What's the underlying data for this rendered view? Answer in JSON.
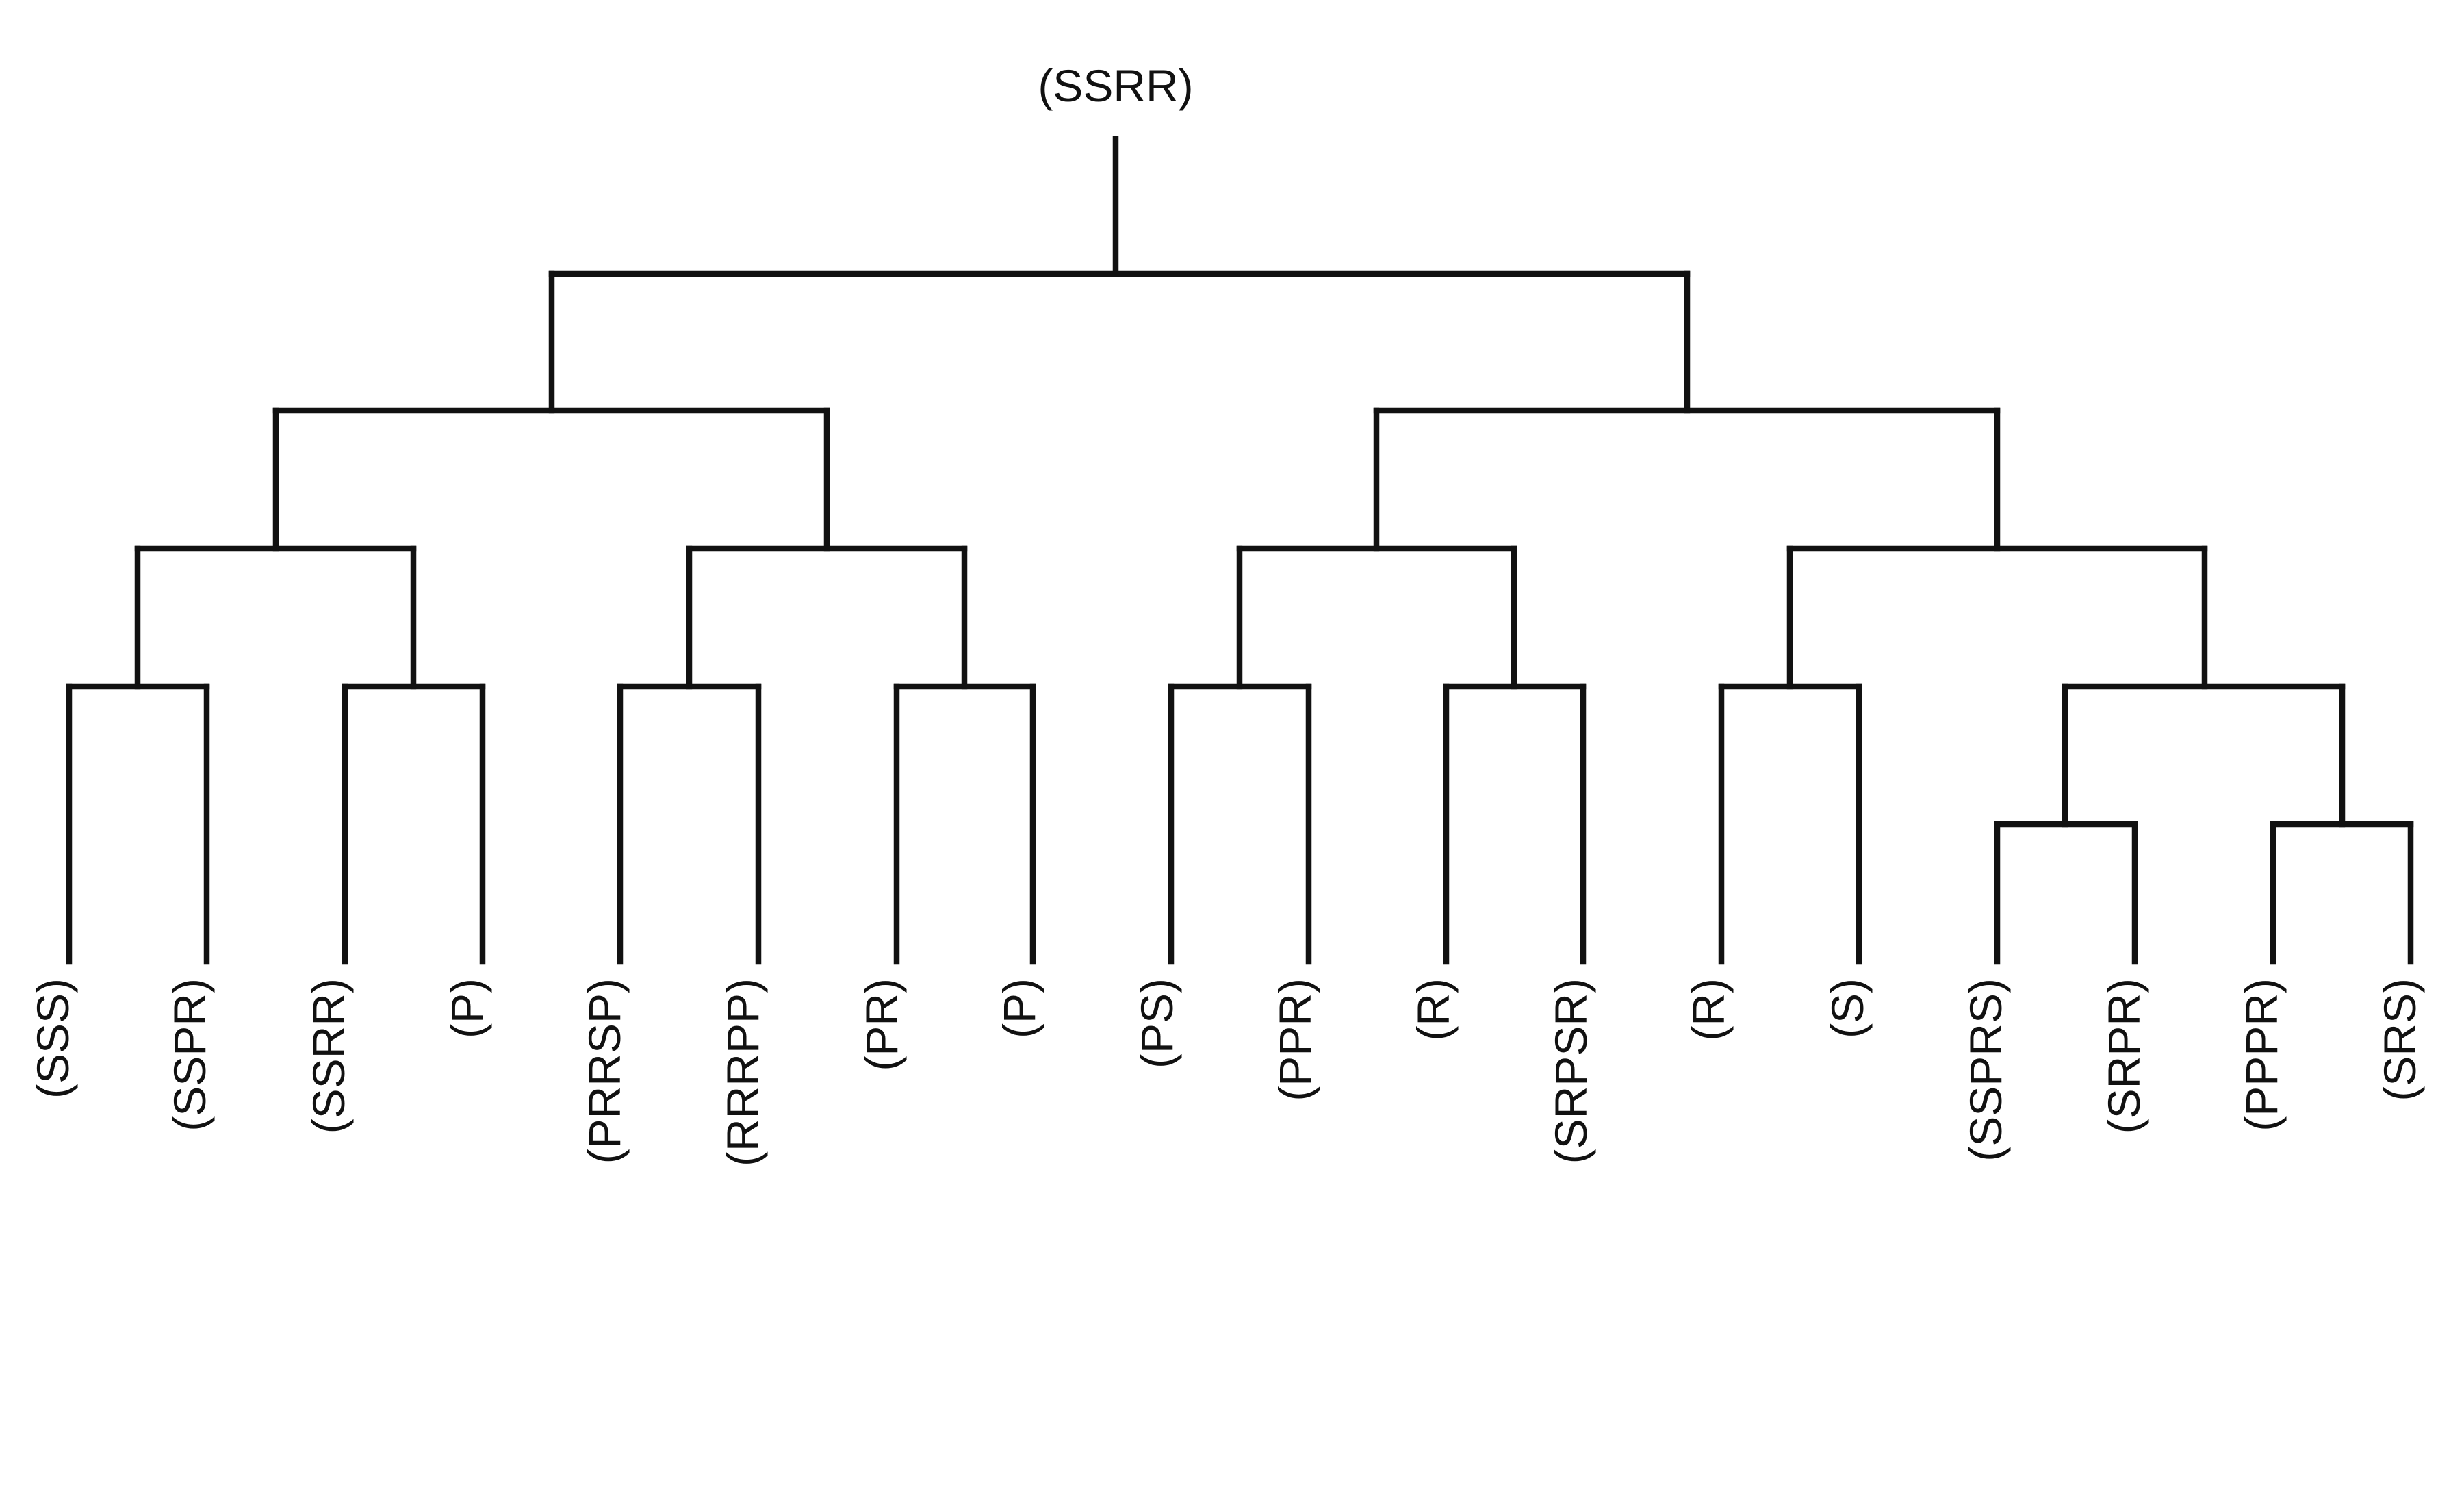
{
  "diagram": {
    "type": "tree",
    "root": "(SSRR)",
    "leaves": [
      "(SSS)",
      "(SSPR)",
      "(SSRR)",
      "(P)",
      "(PRRSP)",
      "(RRRPP)",
      "(PR)",
      "(P)",
      "(PS)",
      "(PPR)",
      "(R)",
      "(SRPSR)",
      "(R)",
      "(S)",
      "(SSPRS)",
      "(SRPR)",
      "(PPPR)",
      "(SRS)"
    ]
  }
}
